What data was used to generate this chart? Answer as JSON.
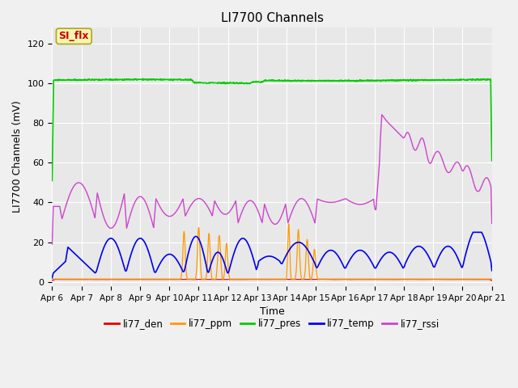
{
  "title": "LI7700 Channels",
  "ylabel": "LI7700 Channels (mV)",
  "xlabel": "Time",
  "xlim_days": [
    0,
    15
  ],
  "ylim": [
    -2,
    128
  ],
  "yticks": [
    0,
    20,
    40,
    60,
    80,
    100,
    120
  ],
  "fig_bg_color": "#f0f0f0",
  "plot_bg_color": "#e8e8e8",
  "annotation_text": "SI_flx",
  "annotation_color": "#cc0000",
  "annotation_bg": "#f5f5b0",
  "annotation_border": "#aaa820",
  "line_colors": {
    "li77_den": "#dd0000",
    "li77_ppm": "#ff9900",
    "li77_pres": "#00cc00",
    "li77_temp": "#0000ee",
    "li77_rssi": "#cc44cc"
  },
  "legend_labels": [
    "li77_den",
    "li77_ppm",
    "li77_pres",
    "li77_temp",
    "li77_rssi"
  ],
  "xtick_labels": [
    "Apr 6",
    "Apr 7",
    "Apr 8",
    "Apr 9",
    "Apr 10",
    "Apr 11",
    "Apr 12",
    "Apr 13",
    "Apr 14",
    "Apr 15",
    "Apr 16",
    "Apr 17",
    "Apr 18",
    "Apr 19",
    "Apr 20",
    "Apr 21"
  ],
  "xtick_positions": [
    0,
    1,
    2,
    3,
    4,
    5,
    6,
    7,
    8,
    9,
    10,
    11,
    12,
    13,
    14,
    15
  ]
}
